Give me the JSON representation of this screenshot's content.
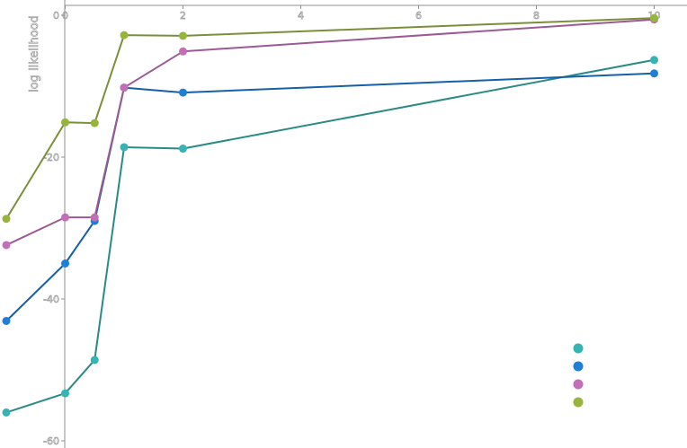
{
  "chart_data": {
    "type": "line",
    "title": "",
    "xlabel": "",
    "ylabel": "log likelihood",
    "xlim": [
      -1,
      10
    ],
    "ylim": [
      -60,
      0
    ],
    "x_ticks": [
      0,
      2,
      4,
      6,
      8,
      10
    ],
    "x_tick_labels": [
      "0",
      "2",
      "4",
      "6",
      "8",
      "10"
    ],
    "y_ticks": [
      0,
      -20,
      -40,
      -60
    ],
    "y_tick_labels": [
      "0",
      "-20",
      "-40",
      "-60"
    ],
    "grid": false,
    "legend_position": "bottom-right",
    "series": [
      {
        "name": "",
        "color": "#37b3b3",
        "line_color": "#2a8a86",
        "x": [
          -1,
          0,
          0.5,
          1,
          2,
          10
        ],
        "y": [
          -56,
          -53.3,
          -48.6,
          -18.6,
          -18.8,
          -6.3
        ]
      },
      {
        "name": "",
        "color": "#1f7fd6",
        "line_color": "#1660a8",
        "x": [
          -1,
          0,
          0.5,
          1,
          2,
          10
        ],
        "y": [
          -43.1,
          -35,
          -29,
          -10.2,
          -10.9,
          -8.2
        ]
      },
      {
        "name": "",
        "color": "#c26fb8",
        "line_color": "#9b5a93",
        "x": [
          -1,
          0,
          0.5,
          1,
          2,
          10
        ],
        "y": [
          -32.4,
          -28.5,
          -28.5,
          -10.2,
          -5.1,
          -0.6
        ]
      },
      {
        "name": "",
        "color": "#97b43c",
        "line_color": "#7b8f3a",
        "x": [
          -1,
          0,
          0.5,
          1,
          2,
          10
        ],
        "y": [
          -28.7,
          -15.1,
          -15.2,
          -2.8,
          -2.9,
          -0.4
        ]
      }
    ]
  }
}
